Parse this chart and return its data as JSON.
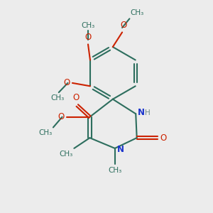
{
  "bg_color": "#ececec",
  "line_color": "#2d6e5e",
  "bond_width": 1.5,
  "N_color": "#1a33cc",
  "O_color": "#cc2200",
  "H_color": "#6a8a8a",
  "fs": 8.5,
  "fs_small": 7.5,
  "fig_size": [
    3.0,
    3.0
  ],
  "dpi": 100,
  "xlim": [
    0,
    10
  ],
  "ylim": [
    0,
    10
  ]
}
